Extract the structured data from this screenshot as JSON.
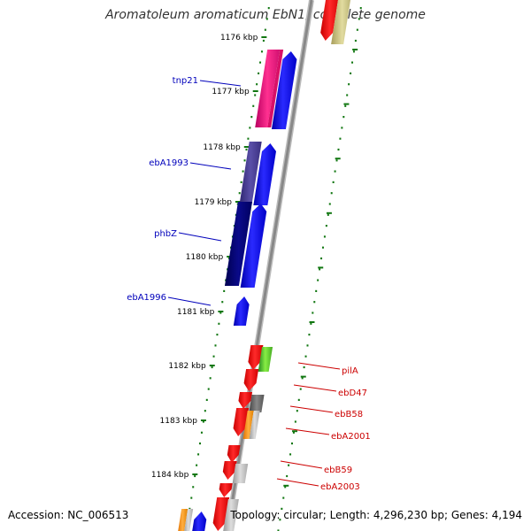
{
  "title": "Aromatoleum aromaticum EbN1, complete genome",
  "footer": {
    "accession": "Accession: NC_006513",
    "stats": "Topology: circular; Length: 4,296,230 bp; Genes: 4,194"
  },
  "colors": {
    "backbone": "#888888",
    "tick": "#117711",
    "forward_label": "#0000bb",
    "reverse_label": "#cc0000",
    "blue_cds": "#0000ee",
    "red_cds": "#ee0000",
    "navy": "#000080",
    "slate": "#4a3f8f",
    "magenta": "#e8147a",
    "olive": "#c8c080"
  },
  "ruler_ticks": [
    "1176 kbp",
    "1177 kbp",
    "1178 kbp",
    "1179 kbp",
    "1180 kbp",
    "1181 kbp",
    "1182 kbp",
    "1183 kbp",
    "1184 kbp"
  ],
  "gene_labels": [
    {
      "text": "tnp21",
      "strand": "forward"
    },
    {
      "text": "ebA1993",
      "strand": "forward"
    },
    {
      "text": "phbZ",
      "strand": "forward"
    },
    {
      "text": "ebA1996",
      "strand": "forward"
    },
    {
      "text": "pilA",
      "strand": "reverse"
    },
    {
      "text": "ebD47",
      "strand": "reverse"
    },
    {
      "text": "ebB58",
      "strand": "reverse"
    },
    {
      "text": "ebA2001",
      "strand": "reverse"
    },
    {
      "text": "ebB59",
      "strand": "reverse"
    },
    {
      "text": "ebA2003",
      "strand": "reverse"
    }
  ]
}
